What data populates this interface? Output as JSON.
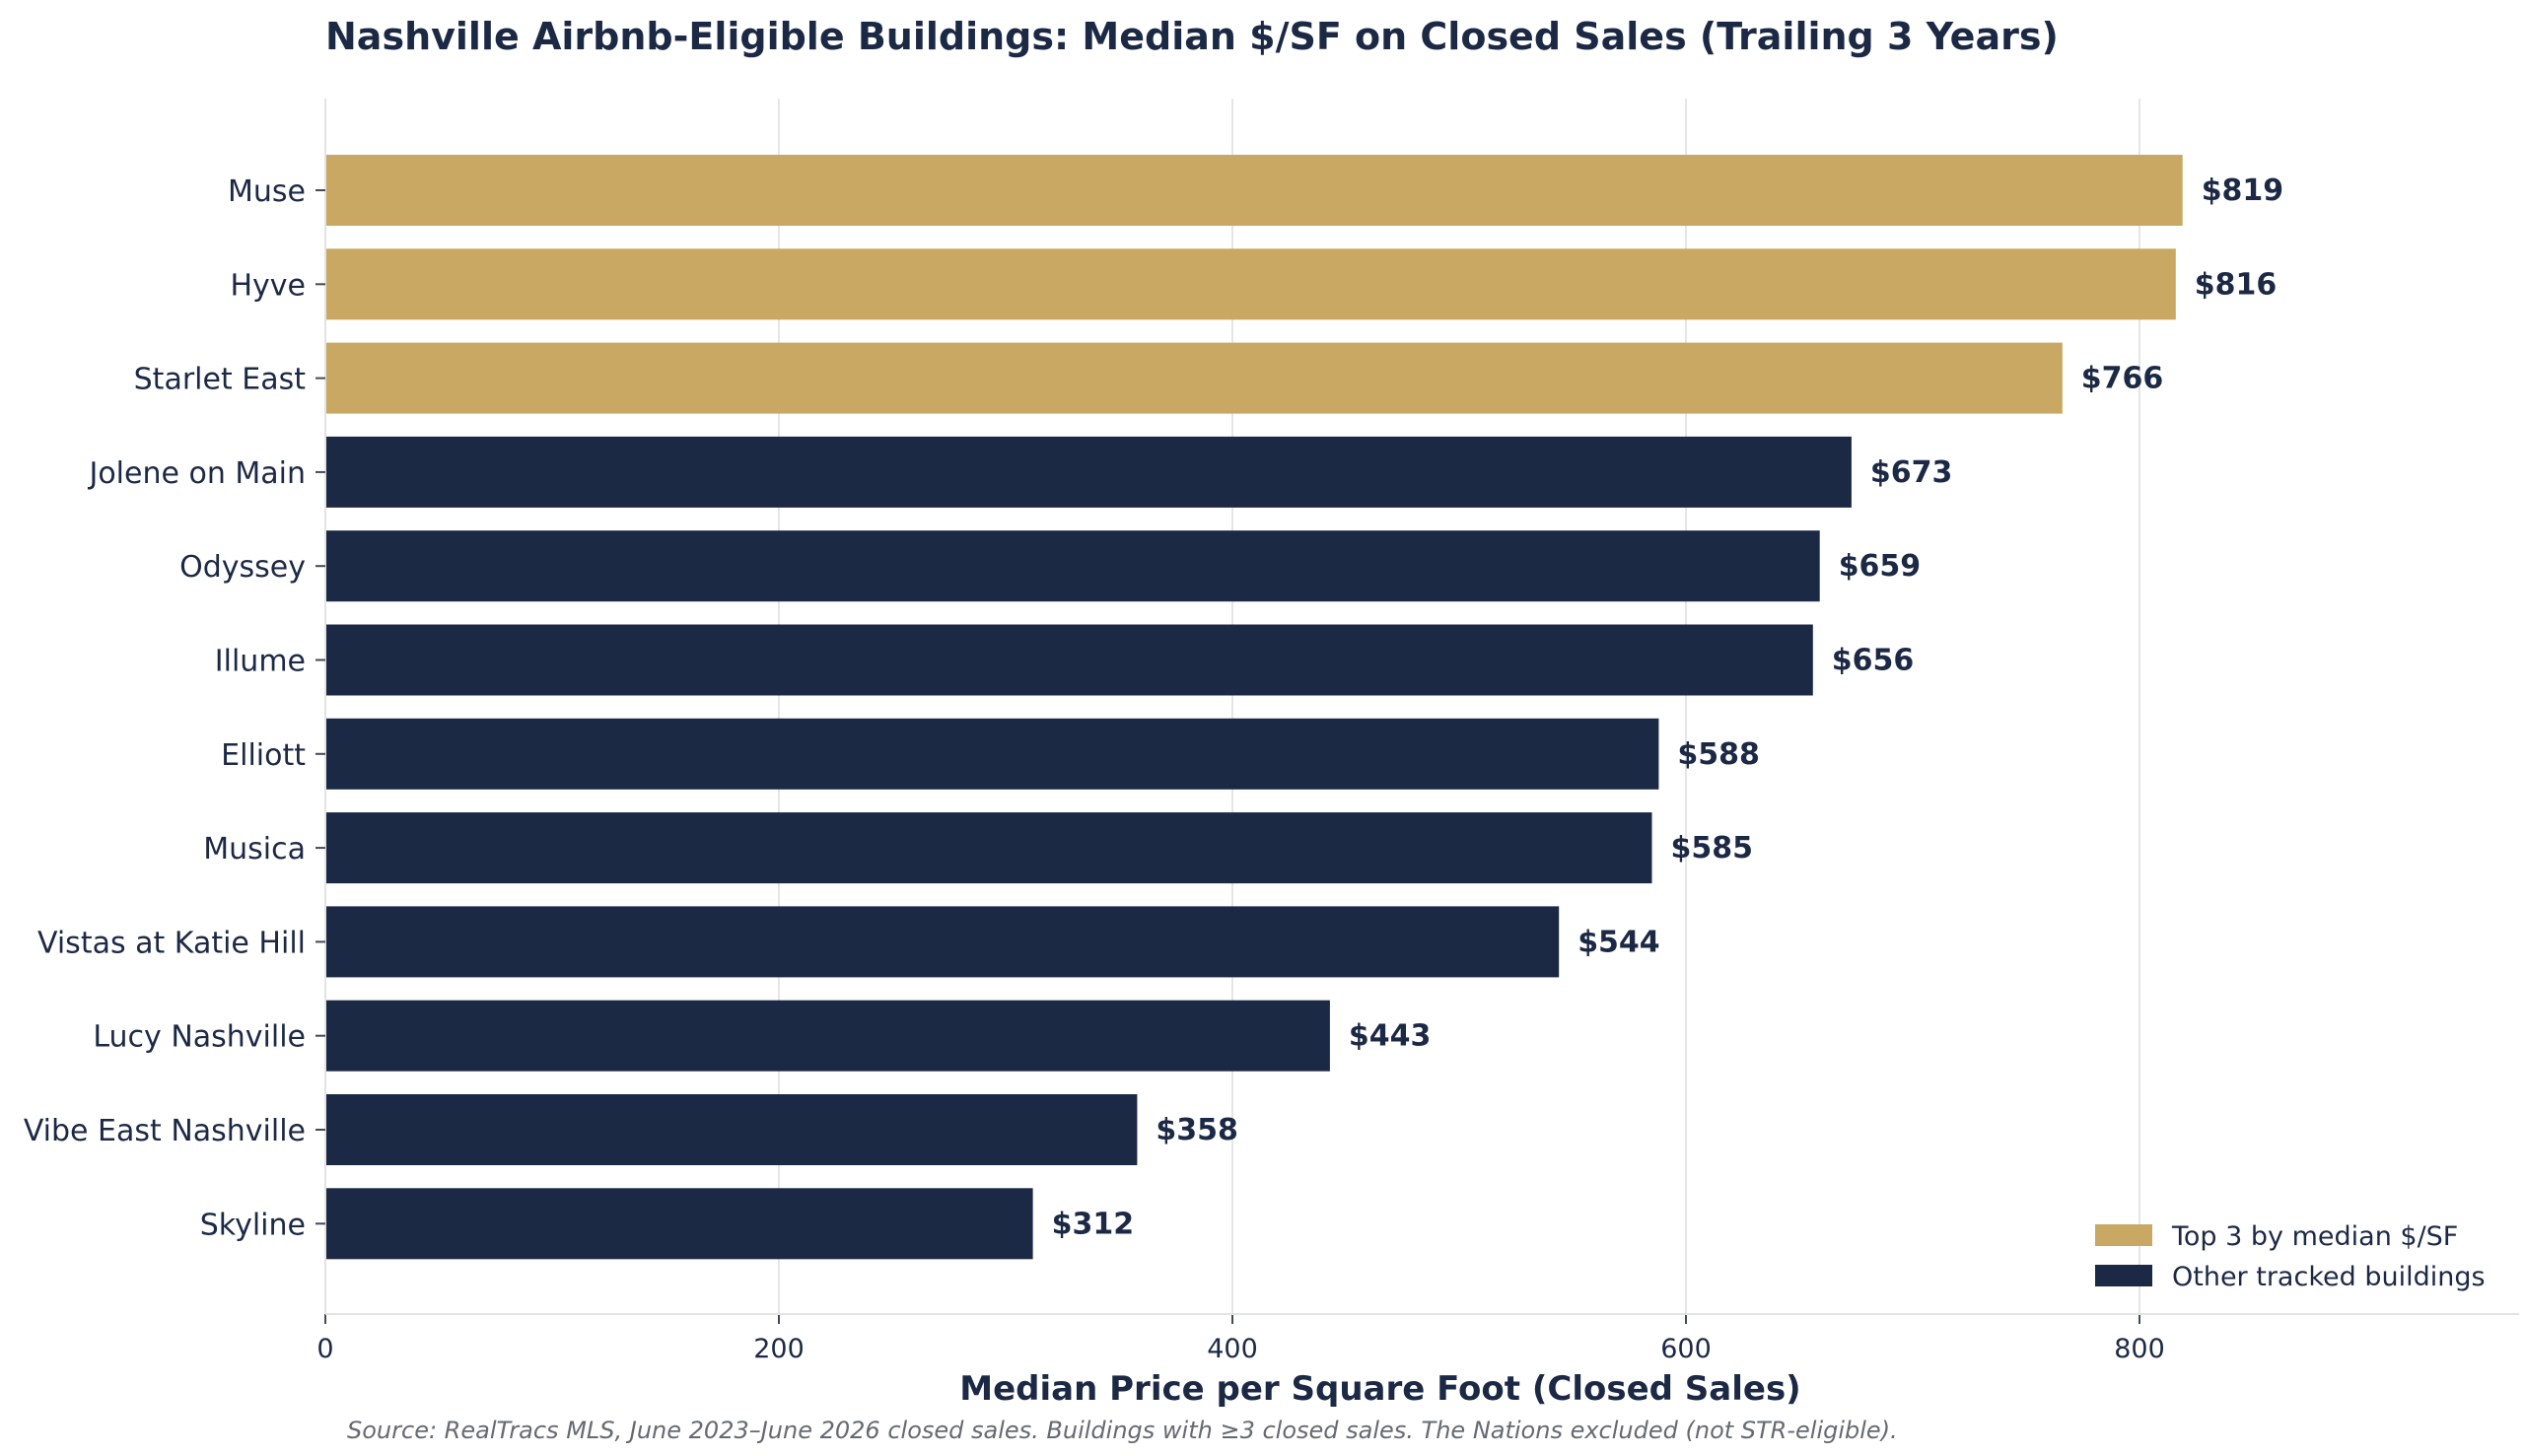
{
  "chart_data": {
    "type": "bar",
    "orientation": "horizontal",
    "title": "Nashville Airbnb-Eligible Buildings: Median $/SF on Closed Sales (Trailing 3 Years)",
    "xlabel": "Median Price per Square Foot (Closed Sales)",
    "ylabel": "",
    "xlim": [
      0,
      830
    ],
    "xticks": [
      0,
      200,
      400,
      600,
      800
    ],
    "xtick_labels": [
      "0",
      "200",
      "400",
      "600",
      "800"
    ],
    "grid": "vertical",
    "legend_position": "bottom-right",
    "categories": [
      "Muse",
      "Hyve",
      "Starlet East",
      "Jolene on Main",
      "Odyssey",
      "Illume",
      "Elliott",
      "Musica",
      "Vistas at Katie Hill",
      "Lucy Nashville",
      "Vibe East Nashville",
      "Skyline"
    ],
    "values": [
      819,
      816,
      766,
      673,
      659,
      656,
      588,
      585,
      544,
      443,
      358,
      312
    ],
    "value_labels": [
      "$819",
      "$816",
      "$766",
      "$673",
      "$659",
      "$656",
      "$588",
      "$585",
      "$544",
      "$443",
      "$358",
      "$312"
    ],
    "groups": [
      "top3",
      "top3",
      "top3",
      "other",
      "other",
      "other",
      "other",
      "other",
      "other",
      "other",
      "other",
      "other"
    ],
    "legend": [
      {
        "key": "top3",
        "label": "Top 3 by median $/SF",
        "color": "#c8a862"
      },
      {
        "key": "other",
        "label": "Other tracked buildings",
        "color": "#1c2945"
      }
    ],
    "source_note": "Source: RealTracs MLS, June 2023–June 2026 closed sales. Buildings with ≥3 closed sales. The Nations excluded (not STR-eligible)."
  },
  "colors": {
    "top3": "#c8a862",
    "other": "#1c2945",
    "text": "#1c2945",
    "grid": "#e6e6e6",
    "note": "#666a70"
  }
}
